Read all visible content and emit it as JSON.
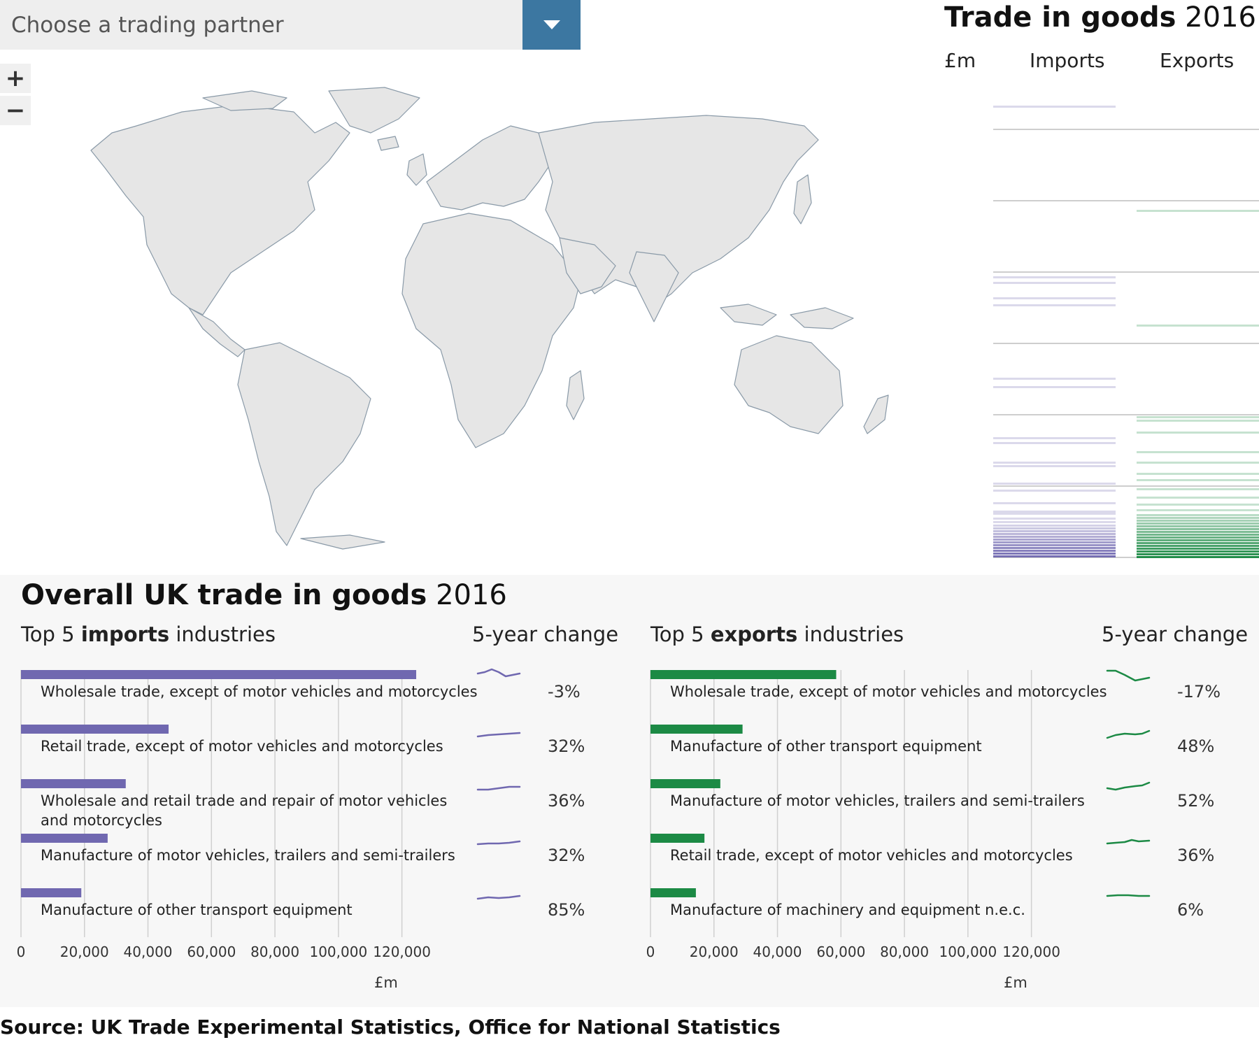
{
  "selector": {
    "placeholder": "Choose a trading partner",
    "dropdown_icon": "triangle-down-icon",
    "accent": "#3c77a1"
  },
  "zoom": {
    "in_label": "+",
    "out_label": "−"
  },
  "map": {
    "land_color": "#e6e6e6",
    "border_color": "#8a9aa8"
  },
  "right_panel": {
    "title_bold": "Trade in goods",
    "title_year": "2016",
    "col_unit": "£m",
    "col_imports": "Imports",
    "col_exports": "Exports",
    "imports_color": "#7068b0",
    "exports_color": "#1c8a45"
  },
  "overall": {
    "title_bold": "Overall UK trade in goods",
    "title_year": "2016",
    "imports_header": {
      "pre": "Top 5 ",
      "bold": "imports",
      "post": " industries"
    },
    "exports_header": {
      "pre": "Top 5 ",
      "bold": "exports",
      "post": " industries"
    },
    "change_header": "5-year change",
    "unit_label": "£m"
  },
  "chart_data": [
    {
      "type": "bar",
      "title": "Top 5 imports industries",
      "xlabel": "£m",
      "xlim": [
        0,
        130000
      ],
      "ticks": [
        "0",
        "20,000",
        "40,000",
        "60,000",
        "80,000",
        "100,000",
        "120,000"
      ],
      "tick_values": [
        0,
        20000,
        40000,
        60000,
        80000,
        100000,
        120000
      ],
      "categories": [
        "Wholesale trade, except of motor vehicles and motorcycles",
        "Retail trade, except of motor vehicles and motorcycles",
        "Wholesale and retail trade and repair of motor vehicles and motorcycles",
        "Manufacture of motor vehicles, trailers and semi-trailers",
        "Manufacture of other transport equipment"
      ],
      "values": [
        124500,
        46500,
        33000,
        27300,
        19000
      ],
      "five_year_change": [
        "-3%",
        "32%",
        "36%",
        "32%",
        "85%"
      ],
      "color": "#7068b0"
    },
    {
      "type": "bar",
      "title": "Top 5 exports industries",
      "xlabel": "£m",
      "xlim": [
        0,
        130000
      ],
      "ticks": [
        "0",
        "20,000",
        "40,000",
        "60,000",
        "80,000",
        "100,000",
        "120,000"
      ],
      "tick_values": [
        0,
        20000,
        40000,
        60000,
        80000,
        100000,
        120000
      ],
      "categories": [
        "Wholesale trade, except of motor vehicles and motorcycles",
        "Manufacture of other transport equipment",
        "Manufacture of motor vehicles, trailers and semi-trailers",
        "Retail trade, except of motor vehicles and motorcycles",
        "Manufacture of machinery and equipment n.e.c."
      ],
      "values": [
        58500,
        29000,
        22000,
        17000,
        14300
      ],
      "five_year_change": [
        "-17%",
        "48%",
        "52%",
        "36%",
        "6%"
      ],
      "color": "#1c8a45"
    }
  ],
  "source": "Source: UK Trade Experimental Statistics, Office for National Statistics"
}
